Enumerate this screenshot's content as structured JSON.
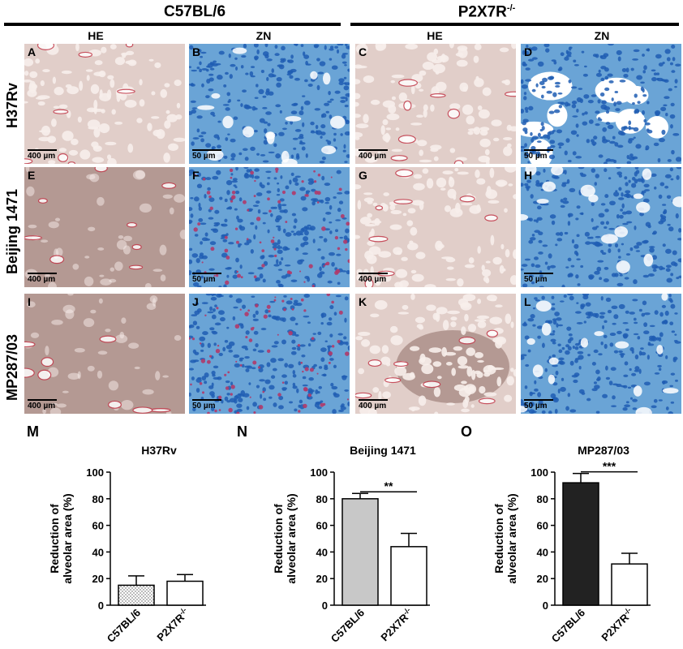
{
  "header": {
    "groups": [
      "C57BL/6",
      "P2X7R-/-"
    ],
    "stains": [
      "HE",
      "ZN",
      "HE",
      "ZN"
    ]
  },
  "rows": [
    "H37Rv",
    "Beijing 1471",
    "MP287/03"
  ],
  "panels": [
    {
      "label": "A",
      "scale": "400 µm",
      "type": "he-light"
    },
    {
      "label": "B",
      "scale": "50 µm",
      "type": "zn-blue"
    },
    {
      "label": "C",
      "scale": "400 µm",
      "type": "he-light"
    },
    {
      "label": "D",
      "scale": "50 µm",
      "type": "zn-blue-open"
    },
    {
      "label": "E",
      "scale": "400 µm",
      "type": "he-dense"
    },
    {
      "label": "F",
      "scale": "50 µm",
      "type": "zn-red"
    },
    {
      "label": "G",
      "scale": "400 µm",
      "type": "he-light"
    },
    {
      "label": "H",
      "scale": "50 µm",
      "type": "zn-blue"
    },
    {
      "label": "I",
      "scale": "400 µm",
      "type": "he-dense"
    },
    {
      "label": "J",
      "scale": "50 µm",
      "type": "zn-red"
    },
    {
      "label": "K",
      "scale": "400 µm",
      "type": "he-mixed"
    },
    {
      "label": "L",
      "scale": "50 µm",
      "type": "zn-blue"
    }
  ],
  "colors": {
    "he_bg": "#efe2dd",
    "he_tissue": "#c9a8a4",
    "he_dense": "#a98c86",
    "he_red": "#c23b4b",
    "zn_bg": "#6aa4d6",
    "zn_cell": "#1f5db3",
    "zn_red": "#b03a6a",
    "bar_c57_gray": "#c8c8c8",
    "bar_c57_black": "#222222",
    "bar_ko": "#ffffff"
  },
  "chart_data": [
    {
      "panel": "M",
      "title": "H37Rv",
      "type": "bar",
      "categories": [
        "C57BL/6",
        "P2X7R-/-"
      ],
      "values": [
        15,
        18
      ],
      "errors": [
        7,
        5
      ],
      "fills": [
        "dotted",
        "white"
      ],
      "ylabel": "Reduction of alveolar area (%)",
      "ylim": [
        0,
        100
      ],
      "yticks": [
        0,
        20,
        40,
        60,
        80,
        100
      ],
      "significance": ""
    },
    {
      "panel": "N",
      "title": "Beijing 1471",
      "type": "bar",
      "categories": [
        "C57BL/6",
        "P2X7R-/-"
      ],
      "values": [
        80,
        44
      ],
      "errors": [
        4,
        10
      ],
      "fills": [
        "gray",
        "white"
      ],
      "ylabel": "Reduction of alveolar area (%)",
      "ylim": [
        0,
        100
      ],
      "yticks": [
        0,
        20,
        40,
        60,
        80,
        100
      ],
      "significance": "**"
    },
    {
      "panel": "O",
      "title": "MP287/03",
      "type": "bar",
      "categories": [
        "C57BL/6",
        "P2X7R-/-"
      ],
      "values": [
        92,
        31
      ],
      "errors": [
        7,
        8
      ],
      "fills": [
        "black",
        "white"
      ],
      "ylabel": "Reduction of alveolar area (%)",
      "ylim": [
        0,
        100
      ],
      "yticks": [
        0,
        20,
        40,
        60,
        80,
        100
      ],
      "significance": "***"
    }
  ]
}
